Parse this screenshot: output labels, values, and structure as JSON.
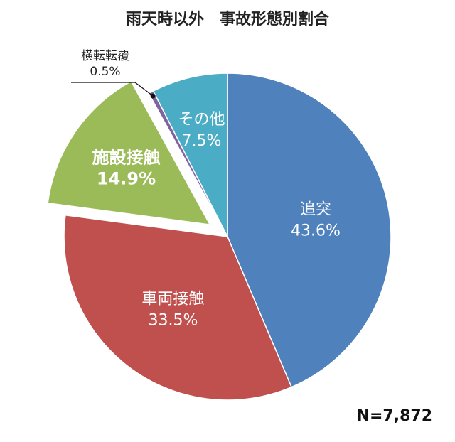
{
  "chart_data": {
    "type": "pie",
    "title": "雨天時以外　事故形態別割合",
    "note": "N=7,872",
    "slices": [
      {
        "name": "追突",
        "value_label": "43.6%",
        "value": 43.6,
        "color": "#4f81bd",
        "exploded": false
      },
      {
        "name": "車両接触",
        "value_label": "33.5%",
        "value": 33.5,
        "color": "#c0504d",
        "exploded": false
      },
      {
        "name": "施設接触",
        "value_label": "14.9%",
        "value": 14.9,
        "color": "#9bbb59",
        "exploded": true
      },
      {
        "name": "横転転覆",
        "value_label": "0.5%",
        "value": 0.5,
        "color": "#8064a2",
        "exploded": false
      },
      {
        "name": "その他",
        "value_label": "7.5%",
        "value": 7.5,
        "color": "#4bacc6",
        "exploded": false
      }
    ],
    "start_angle": "12 o'clock",
    "direction": "clockwise",
    "legend": "none"
  }
}
